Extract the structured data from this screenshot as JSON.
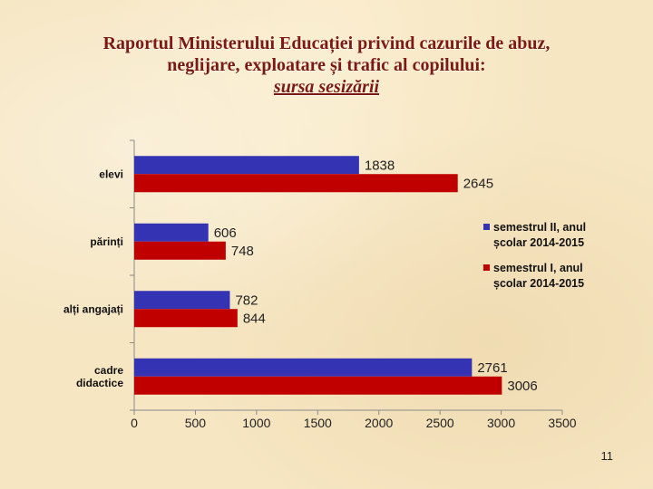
{
  "slide": {
    "title_line1": "Raportul Ministerului Educației privind cazurile de abuz,",
    "title_line2": "neglijare, exploatare și trafic al copilului:",
    "title_line3": "sursa sesizării",
    "page_number": "11"
  },
  "colors": {
    "series_semestrul_II": "#3333b3",
    "series_semestrul_I": "#c00000",
    "title": "#7a1a12"
  },
  "chart_data": {
    "type": "bar",
    "orientation": "horizontal",
    "categories": [
      "elevi",
      "părinți",
      "alți angajați",
      "cadre didactice"
    ],
    "category_lines": [
      [
        "elevi"
      ],
      [
        "părinți"
      ],
      [
        "alți angajați"
      ],
      [
        "cadre",
        "didactice"
      ]
    ],
    "series": [
      {
        "name": "semestrul II, anul școlar 2014-2015",
        "name_lines": [
          "semestrul II, anul",
          "școlar 2014-2015"
        ],
        "values": [
          1838,
          606,
          782,
          2761
        ],
        "color": "#3333b3"
      },
      {
        "name": "semestrul I, anul școlar 2014-2015",
        "name_lines": [
          "semestrul I, anul",
          "școlar 2014-2015"
        ],
        "values": [
          2645,
          748,
          844,
          3006
        ],
        "color": "#c00000"
      }
    ],
    "xlim": [
      0,
      3500
    ],
    "x_ticks": [
      0,
      500,
      1000,
      1500,
      2000,
      2500,
      3000,
      3500
    ],
    "legend_position": "right",
    "grid": false,
    "data_labels": true
  }
}
